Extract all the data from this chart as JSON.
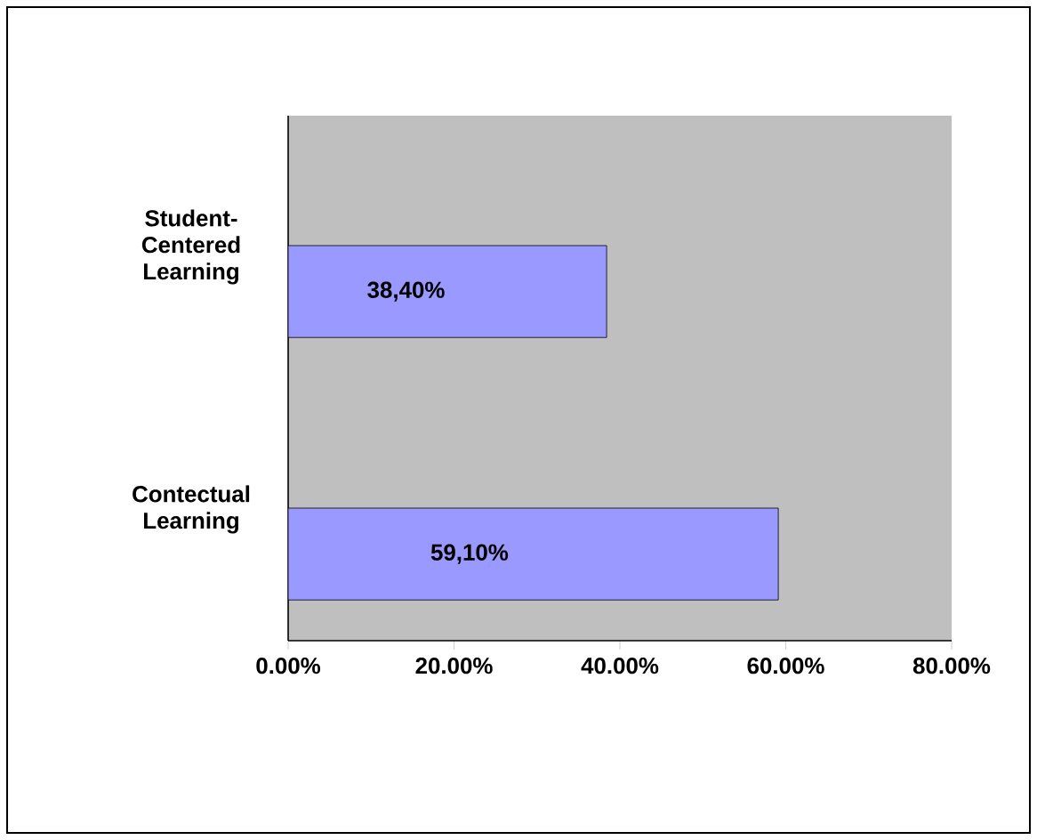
{
  "chart_data": {
    "type": "bar",
    "orientation": "horizontal",
    "categories": [
      "Student-Centered Learning",
      "Contectual Learning"
    ],
    "values": [
      38.4,
      59.1
    ],
    "value_labels": [
      "38,40%",
      "59,10%"
    ],
    "color": "#9999ff",
    "xlim": [
      0,
      80
    ],
    "xticks": [
      {
        "value": 0,
        "label": "0.00%"
      },
      {
        "value": 20,
        "label": "20.00%"
      },
      {
        "value": 40,
        "label": "40.00%"
      },
      {
        "value": 60,
        "label": "60.00%"
      },
      {
        "value": 80,
        "label": "80.00%"
      }
    ]
  }
}
